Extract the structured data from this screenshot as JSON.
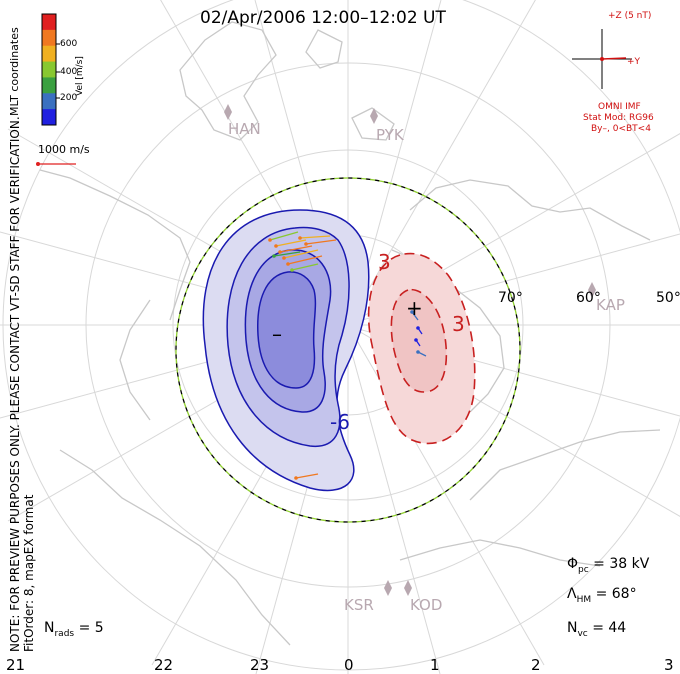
{
  "title": "02/Apr/2006 12:00–12:02 UT",
  "colorbar": {
    "title": "Vel [m/s]",
    "ticks": [
      "600",
      "400",
      "200"
    ],
    "colors": [
      "#e02020",
      "#f07820",
      "#f0b020",
      "#88c830",
      "#3aa040",
      "#3a70c0",
      "#2020e0"
    ]
  },
  "velocity_reference": "1000 m/s",
  "side_text": {
    "top": "MLT coordinates",
    "bottom_line1": "NOTE: FOR PREVIEW PURPOSES ONLY. PLEASE CONTACT VT-SD STAFF FOR VERIFICATION.",
    "bottom_line2": "FitOrder: 8, mapEX format"
  },
  "imf": {
    "z_label": "+Z (5 nT)",
    "y_label": "+Y",
    "source": "OMNI IMF",
    "model_line1": "Stat Mod: RG96",
    "model_line2": "By–, 0<BT<4",
    "color": "#d01010"
  },
  "stations": [
    "HAN",
    "PYK",
    "KAP",
    "KSR",
    "KOD"
  ],
  "latitude_labels": [
    "70°",
    "60°",
    "50°"
  ],
  "mlt_labels": [
    "21",
    "22",
    "23",
    "0",
    "1",
    "2",
    "3"
  ],
  "contour_labels": {
    "positive": "3",
    "positive_inner": "3",
    "negative": "-6"
  },
  "extrema": {
    "min": "–",
    "max": "+"
  },
  "stats": {
    "phi_symbol": "Φ",
    "phi_sub": "pc",
    "phi_value": "= 38 kV",
    "lambda_symbol": "Λ",
    "lambda_sub": "HM",
    "lambda_value": "= 68°",
    "nvc_symbol": "N",
    "nvc_sub": "vc",
    "nvc_value": "= 44",
    "nrads_symbol": "N",
    "nrads_sub": "rads",
    "nrads_value": "= 5"
  },
  "colors": {
    "negative_fill": "#6a6ad8",
    "negative_line": "#1a1ab0",
    "positive_fill": "#e87070",
    "positive_line": "#c82020",
    "coast": "#cccccc",
    "grid": "#d8d8d8",
    "boundary_dash": "#90d030"
  }
}
